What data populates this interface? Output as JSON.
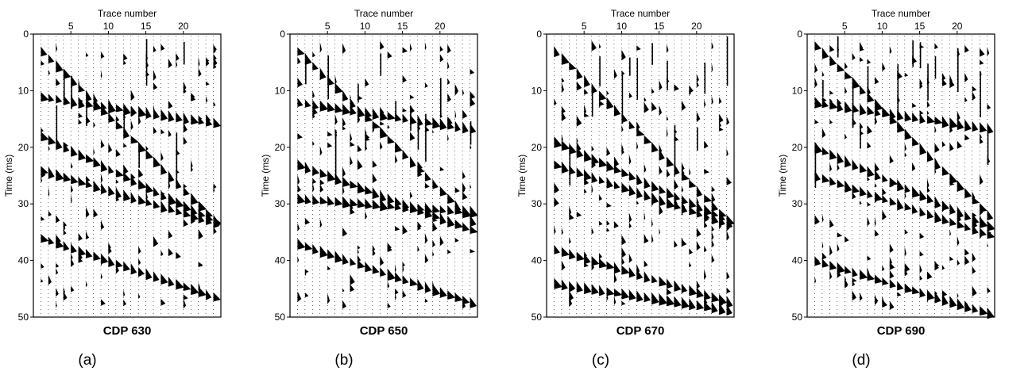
{
  "chart_data": [
    {
      "type": "wiggle",
      "panel_label": "(a)",
      "title": "CDP 630",
      "xlabel": "Trace number",
      "ylabel": "Time (ms)",
      "x_ticks": [
        5,
        10,
        15,
        20
      ],
      "y_ticks": [
        0,
        10,
        20,
        30,
        40,
        50
      ],
      "xlim": [
        0,
        25
      ],
      "ylim": [
        50,
        0
      ],
      "traces": 24,
      "events": [
        {
          "t0": 3,
          "slope": 1.3
        },
        {
          "t0": 18,
          "slope": 0.65
        },
        {
          "t0": 24,
          "slope": 0.4
        },
        {
          "t0": 36,
          "slope": 0.45
        },
        {
          "t0": 11,
          "slope": 0.2
        }
      ]
    },
    {
      "type": "wiggle",
      "panel_label": "(b)",
      "title": "CDP 650",
      "xlabel": "Trace number",
      "ylabel": "Time (ms)",
      "x_ticks": [
        5,
        10,
        15,
        20
      ],
      "y_ticks": [
        0,
        10,
        20,
        30,
        40,
        50
      ],
      "xlim": [
        0,
        25
      ],
      "ylim": [
        50,
        0
      ],
      "traces": 24,
      "events": [
        {
          "t0": 3,
          "slope": 1.3
        },
        {
          "t0": 23,
          "slope": 0.5
        },
        {
          "t0": 37,
          "slope": 0.45
        },
        {
          "t0": 12,
          "slope": 0.2
        },
        {
          "t0": 29,
          "slope": 0.1
        }
      ]
    },
    {
      "type": "wiggle",
      "panel_label": "(c)",
      "title": "CDP 670",
      "xlabel": "Trace number",
      "ylabel": "Time (ms)",
      "x_ticks": [
        5,
        10,
        15,
        20
      ],
      "y_ticks": [
        0,
        10,
        20,
        30,
        40,
        50
      ],
      "xlim": [
        0,
        25
      ],
      "ylim": [
        50,
        0
      ],
      "traces": 24,
      "events": [
        {
          "t0": 3,
          "slope": 1.3
        },
        {
          "t0": 19,
          "slope": 0.6
        },
        {
          "t0": 23,
          "slope": 0.45
        },
        {
          "t0": 38,
          "slope": 0.4
        },
        {
          "t0": 44,
          "slope": 0.2
        }
      ]
    },
    {
      "type": "wiggle",
      "panel_label": "(d)",
      "title": "CDP 690",
      "xlabel": "Trace number",
      "ylabel": "Time (ms)",
      "x_ticks": [
        5,
        10,
        15,
        20
      ],
      "y_ticks": [
        0,
        10,
        20,
        30,
        40,
        50
      ],
      "xlim": [
        0,
        25
      ],
      "ylim": [
        50,
        0
      ],
      "traces": 24,
      "events": [
        {
          "t0": 2,
          "slope": 1.3
        },
        {
          "t0": 20,
          "slope": 0.6
        },
        {
          "t0": 25,
          "slope": 0.45
        },
        {
          "t0": 40,
          "slope": 0.4
        },
        {
          "t0": 12,
          "slope": 0.2
        }
      ]
    }
  ]
}
